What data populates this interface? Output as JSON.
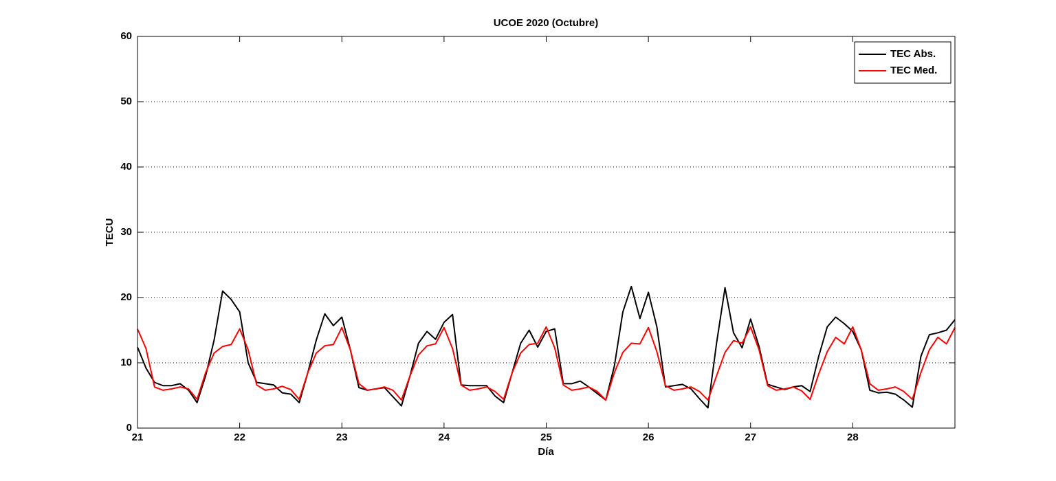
{
  "chart_data": {
    "type": "line",
    "title": "UCOE 2020 (Octubre)",
    "x_label": "Día",
    "y_label": "TECU",
    "x": [
      21,
      21.083,
      21.167,
      21.25,
      21.333,
      21.417,
      21.5,
      21.583,
      21.667,
      21.75,
      21.833,
      21.917,
      22,
      22.083,
      22.167,
      22.25,
      22.333,
      22.417,
      22.5,
      22.583,
      22.667,
      22.75,
      22.833,
      22.917,
      23,
      23.083,
      23.167,
      23.25,
      23.333,
      23.417,
      23.5,
      23.583,
      23.667,
      23.75,
      23.833,
      23.917,
      24,
      24.083,
      24.167,
      24.25,
      24.333,
      24.417,
      24.5,
      24.583,
      24.667,
      24.75,
      24.833,
      24.917,
      25,
      25.083,
      25.167,
      25.25,
      25.333,
      25.417,
      25.5,
      25.583,
      25.667,
      25.75,
      25.833,
      25.917,
      26,
      26.083,
      26.167,
      26.25,
      26.333,
      26.417,
      26.5,
      26.583,
      26.667,
      26.75,
      26.833,
      26.917,
      27,
      27.083,
      27.167,
      27.25,
      27.333,
      27.417,
      27.5,
      27.583,
      27.667,
      27.75,
      27.833,
      27.917,
      28,
      28.083,
      28.167,
      28.25,
      28.333,
      28.417,
      28.5,
      28.583,
      28.667,
      28.75,
      28.833,
      28.917,
      29
    ],
    "series": [
      {
        "name": "TEC Abs.",
        "color": "#000000",
        "values": [
          12.4,
          9.2,
          7,
          6.5,
          6.5,
          6.8,
          5.8,
          3.9,
          8,
          13.5,
          21,
          19.7,
          17.8,
          10,
          7,
          6.8,
          6.6,
          5.4,
          5.2,
          3.9,
          8.5,
          13.5,
          17.5,
          15.7,
          17,
          12,
          6.2,
          5.8,
          6,
          6.2,
          4.8,
          3.4,
          8,
          13,
          14.8,
          13.6,
          16.2,
          17.4,
          6.6,
          6.5,
          6.5,
          6.5,
          4.9,
          3.9,
          8.5,
          13,
          15,
          12.4,
          14.8,
          15.2,
          6.8,
          6.8,
          7.2,
          6.3,
          5.3,
          4.3,
          9.5,
          17.8,
          21.7,
          16.8,
          20.8,
          15.5,
          6.3,
          6.5,
          6.7,
          6,
          4.5,
          3.1,
          13,
          21.5,
          14.6,
          12.3,
          16.7,
          12.5,
          6.7,
          6.3,
          5.9,
          6.3,
          6.5,
          5.6,
          11,
          15.5,
          17,
          16,
          14.8,
          12,
          5.8,
          5.4,
          5.5,
          5.2,
          4.3,
          3.2,
          11,
          14.3,
          14.6,
          15,
          16.6
        ]
      },
      {
        "name": "TEC Med.",
        "color": "#ff0000",
        "values": [
          15.2,
          12.2,
          6.3,
          5.8,
          6,
          6.3,
          6,
          4.4,
          8.5,
          11.5,
          12.5,
          12.8,
          15.2,
          12,
          6.6,
          5.8,
          6,
          6.4,
          5.9,
          4.4,
          8.5,
          11.5,
          12.6,
          12.8,
          15.4,
          12,
          6.8,
          5.8,
          6,
          6.3,
          5.8,
          4.3,
          8,
          11.2,
          12.6,
          12.9,
          15.4,
          12.2,
          6.6,
          5.8,
          6,
          6.3,
          5.6,
          4.4,
          8.5,
          11.5,
          12.8,
          13,
          15.5,
          12.3,
          6.6,
          5.8,
          6,
          6.3,
          5.6,
          4.3,
          8.5,
          11.6,
          13,
          12.9,
          15.4,
          11.7,
          6.5,
          5.8,
          6,
          6.3,
          5.6,
          4.3,
          8,
          11.6,
          13.4,
          13,
          15.5,
          12,
          6.5,
          5.8,
          6,
          6.3,
          5.7,
          4.4,
          8.3,
          11.7,
          13.9,
          12.9,
          15.5,
          12,
          6.8,
          5.8,
          6,
          6.3,
          5.6,
          4.4,
          8.5,
          12,
          13.9,
          12.9,
          15.4
        ]
      }
    ],
    "xlim": [
      21,
      29
    ],
    "xticks": [
      21,
      22,
      23,
      24,
      25,
      26,
      27,
      28
    ],
    "ylim": [
      0,
      60
    ],
    "yticks": [
      0,
      10,
      20,
      30,
      40,
      50,
      60
    ],
    "grid": true,
    "legend": "top-right"
  }
}
